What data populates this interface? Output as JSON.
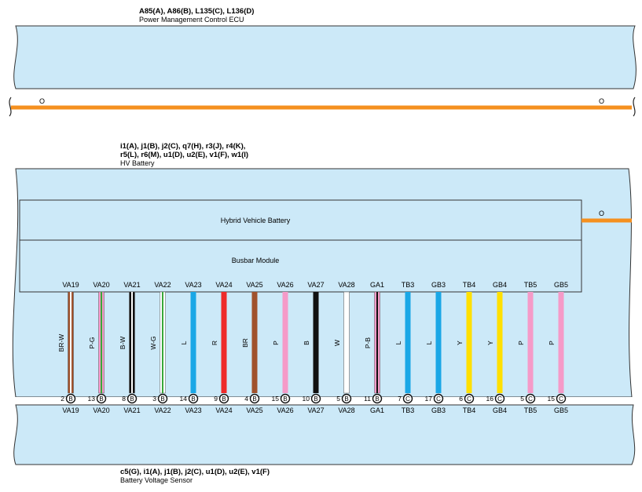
{
  "top_component": {
    "codes": "A85(A), A86(B), L135(C), L136(D)",
    "name": "Power Management Control ECU"
  },
  "bus": {
    "left_label": "O",
    "right_label": "O",
    "color": "#f5901f"
  },
  "hv_battery": {
    "codes_line1": "i1(A), j1(B), j2(C), q7(H), r3(J), r4(K),",
    "codes_line2": "r5(L), r6(M), u1(D), u2(E), v1(F), w1(I)",
    "name": "HV Battery",
    "hybrid_label": "Hybrid Vehicle Battery",
    "busbar_label": "Busbar Module",
    "side_wire_label": "O"
  },
  "bottom_component": {
    "codes": "c5(G), i1(A), j1(B), j2(C), u1(D), u2(E), v1(F)",
    "name": "Battery Voltage Sensor"
  },
  "colors": {
    "panel_fill": "#cce9f8",
    "panel_stroke": "#333333",
    "orange": "#f5901f"
  },
  "wires": [
    {
      "top": "VA19",
      "bottom": "VA19",
      "color_label": "BR-W",
      "pin": "2",
      "conn": "B",
      "colors": [
        "#a0522d",
        "#ffffff"
      ]
    },
    {
      "top": "VA20",
      "bottom": "VA20",
      "color_label": "P-G",
      "pin": "13",
      "conn": "B",
      "colors": [
        "#f59ac8",
        "#3aa83a"
      ]
    },
    {
      "top": "VA21",
      "bottom": "VA21",
      "color_label": "B-W",
      "pin": "8",
      "conn": "B",
      "colors": [
        "#111111",
        "#ffffff"
      ]
    },
    {
      "top": "VA22",
      "bottom": "VA22",
      "color_label": "W-G",
      "pin": "3",
      "conn": "B",
      "colors": [
        "#ffffff",
        "#3aa83a"
      ]
    },
    {
      "top": "VA23",
      "bottom": "VA23",
      "color_label": "L",
      "pin": "14",
      "conn": "B",
      "colors": [
        "#1aa7e6"
      ]
    },
    {
      "top": "VA24",
      "bottom": "VA24",
      "color_label": "R",
      "pin": "9",
      "conn": "B",
      "colors": [
        "#ee2a2a"
      ]
    },
    {
      "top": "VA25",
      "bottom": "VA25",
      "color_label": "BR",
      "pin": "4",
      "conn": "B",
      "colors": [
        "#a0522d"
      ]
    },
    {
      "top": "VA26",
      "bottom": "VA26",
      "color_label": "P",
      "pin": "15",
      "conn": "B",
      "colors": [
        "#f59ac8"
      ]
    },
    {
      "top": "VA27",
      "bottom": "VA27",
      "color_label": "B",
      "pin": "10",
      "conn": "B",
      "colors": [
        "#111111"
      ]
    },
    {
      "top": "VA28",
      "bottom": "VA28",
      "color_label": "W",
      "pin": "5",
      "conn": "B",
      "colors": [
        "#ffffff"
      ]
    },
    {
      "top": "GA1",
      "bottom": "GA1",
      "color_label": "P-B",
      "pin": "11",
      "conn": "B",
      "colors": [
        "#f59ac8",
        "#111111"
      ]
    },
    {
      "top": "TB3",
      "bottom": "TB3",
      "color_label": "L",
      "pin": "7",
      "conn": "C",
      "colors": [
        "#1aa7e6"
      ]
    },
    {
      "top": "GB3",
      "bottom": "GB3",
      "color_label": "L",
      "pin": "17",
      "conn": "C",
      "colors": [
        "#1aa7e6"
      ]
    },
    {
      "top": "TB4",
      "bottom": "TB4",
      "color_label": "Y",
      "pin": "6",
      "conn": "C",
      "colors": [
        "#ffe000"
      ]
    },
    {
      "top": "GB4",
      "bottom": "GB4",
      "color_label": "Y",
      "pin": "16",
      "conn": "C",
      "colors": [
        "#ffe000"
      ]
    },
    {
      "top": "TB5",
      "bottom": "TB5",
      "color_label": "P",
      "pin": "5",
      "conn": "C",
      "colors": [
        "#f59ac8"
      ]
    },
    {
      "top": "GB5",
      "bottom": "GB5",
      "color_label": "P",
      "pin": "15",
      "conn": "C",
      "colors": [
        "#f59ac8"
      ]
    }
  ]
}
